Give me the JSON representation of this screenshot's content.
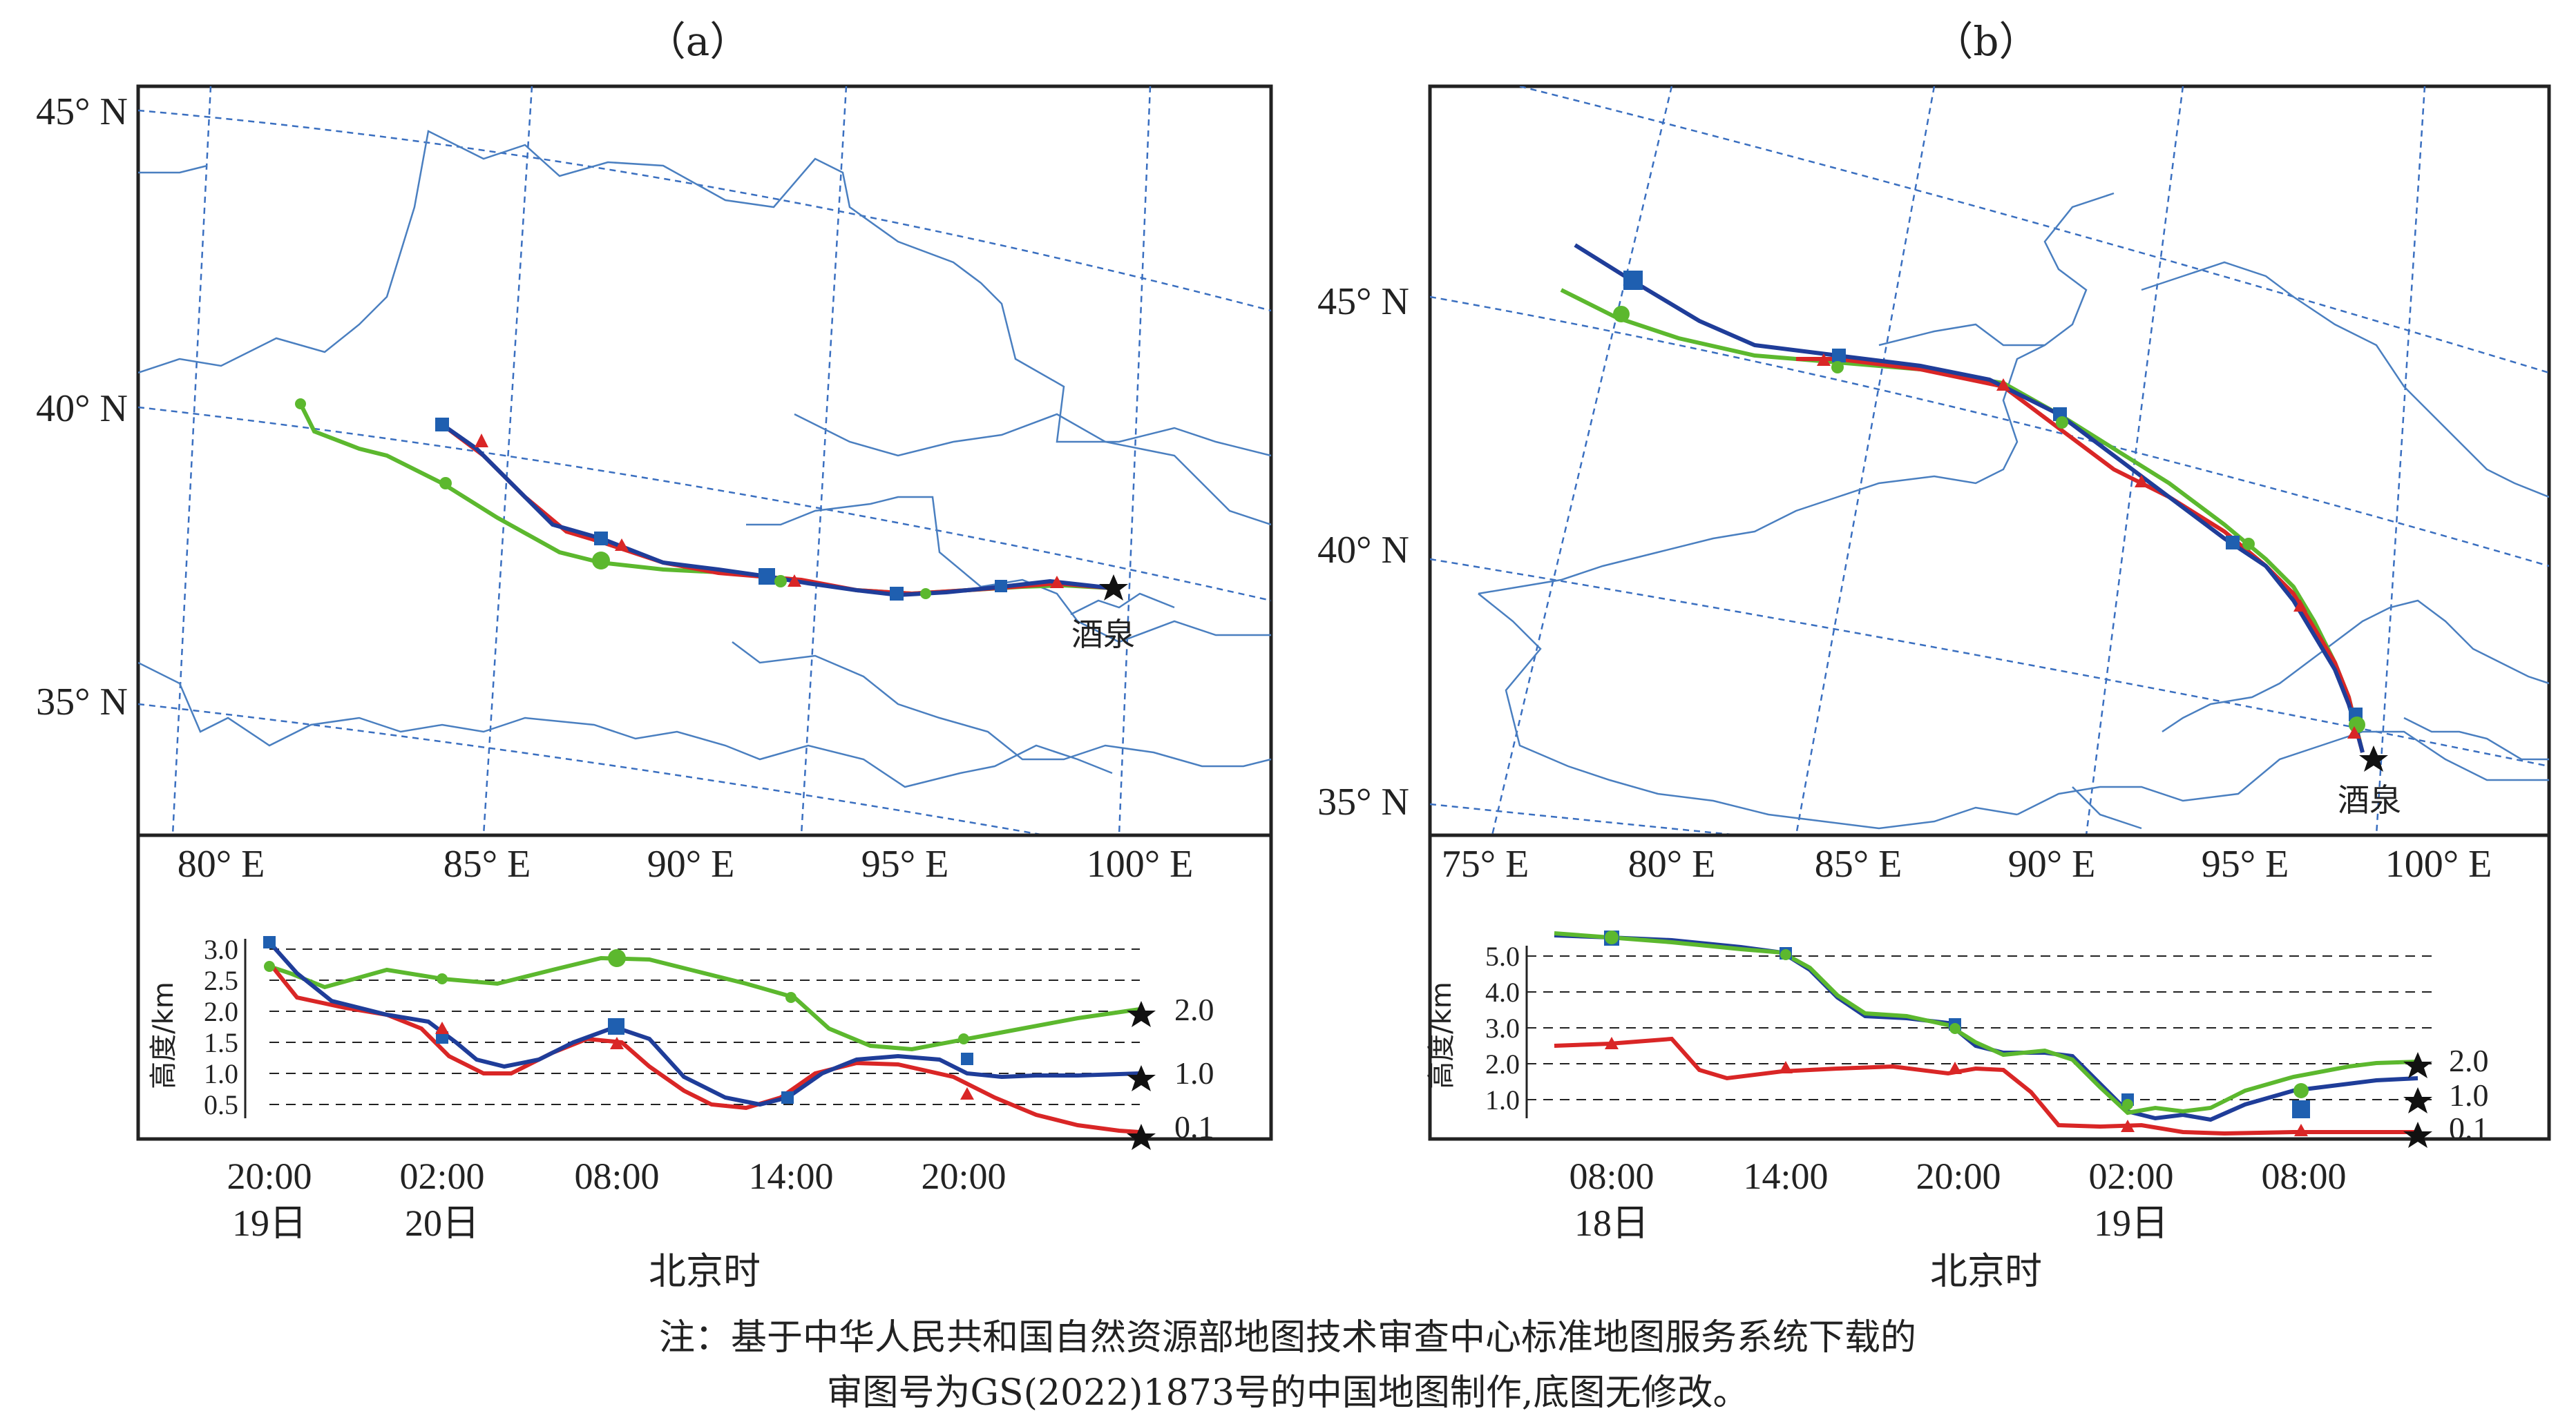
{
  "panel_a": {
    "title": "（a）",
    "lat_labels": [
      "45° N",
      "40° N",
      "35° N"
    ],
    "lon_labels": [
      "80° E",
      "85° E",
      "90° E",
      "95° E",
      "100° E"
    ],
    "place_label": "酒泉",
    "height_axis": {
      "ylabel": "高度/km",
      "ticks": [
        "3.0",
        "2.5",
        "2.0",
        "1.5",
        "1.0",
        "0.5"
      ],
      "end_labels": [
        "2.0",
        "1.0",
        "0.1"
      ],
      "time_ticks": [
        {
          "time": "20:00",
          "day": "19日"
        },
        {
          "time": "02:00",
          "day": "20日"
        },
        {
          "time": "08:00",
          "day": ""
        },
        {
          "time": "14:00",
          "day": ""
        },
        {
          "time": "20:00",
          "day": ""
        }
      ],
      "xlabel": "北京时"
    }
  },
  "panel_b": {
    "title": "（b）",
    "lat_labels": [
      "45° N",
      "40° N",
      "35° N"
    ],
    "lon_labels": [
      "75° E",
      "80° E",
      "85° E",
      "90° E",
      "95° E",
      "100° E"
    ],
    "place_label": "酒泉",
    "height_axis": {
      "ylabel": "高度/km",
      "ticks": [
        "5.0",
        "4.0",
        "3.0",
        "2.0",
        "1.0"
      ],
      "end_labels": [
        "2.0",
        "1.0",
        "0.1"
      ],
      "time_ticks": [
        {
          "time": "08:00",
          "day": "18日"
        },
        {
          "time": "14:00",
          "day": ""
        },
        {
          "time": "20:00",
          "day": ""
        },
        {
          "time": "02:00",
          "day": "19日"
        },
        {
          "time": "08:00",
          "day": ""
        }
      ],
      "xlabel": "北京时"
    }
  },
  "note": {
    "line1": "注：基于中华人民共和国自然资源部地图技术审查中心标准地图服务系统下载的",
    "line2": "审图号为GS(2022)1873号的中国地图制作,底图无修改。"
  },
  "colors": {
    "traj_2000m": "#5cb82e",
    "traj_1000m": "#1f3d99",
    "traj_100m": "#d92626",
    "grid": "#3a6fc0",
    "border": "#4a7fc0",
    "frame": "#222222"
  },
  "legend_series": [
    "2.0 km",
    "1.0 km",
    "0.1 km"
  ]
}
